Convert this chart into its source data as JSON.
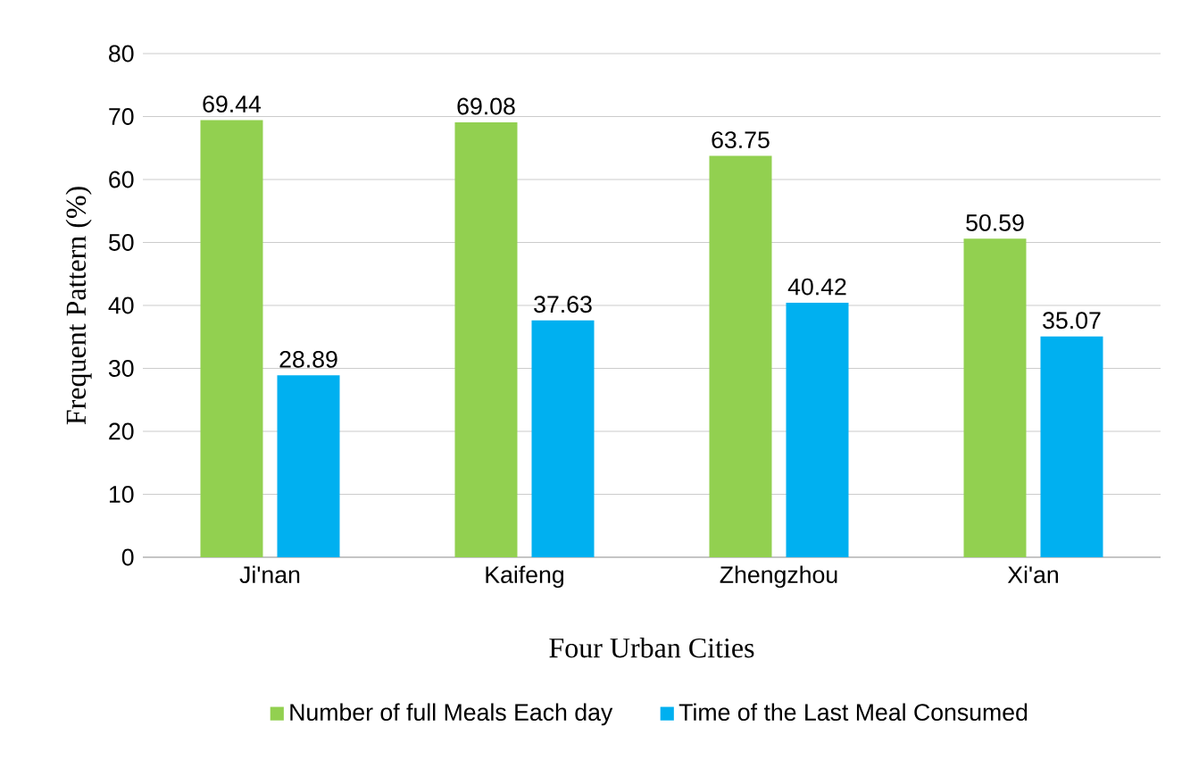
{
  "chart_data": {
    "type": "bar",
    "xlabel": "Four Urban Cities",
    "ylabel": "Frequent Pattern (%)",
    "categories": [
      "Ji'nan",
      "Kaifeng",
      "Zhengzhou",
      "Xi'an"
    ],
    "series": [
      {
        "name": "Number of full Meals Each day",
        "color": "#92d050",
        "values": [
          69.44,
          69.08,
          63.75,
          50.59
        ]
      },
      {
        "name": "Time of the Last Meal Consumed",
        "color": "#00b0f0",
        "values": [
          28.89,
          37.63,
          40.42,
          35.07
        ]
      }
    ],
    "ylim": [
      0,
      80
    ],
    "yticks": [
      0,
      10,
      20,
      30,
      40,
      50,
      60,
      70,
      80
    ],
    "grid": "y",
    "legend": "bottom",
    "data_labels": true
  }
}
